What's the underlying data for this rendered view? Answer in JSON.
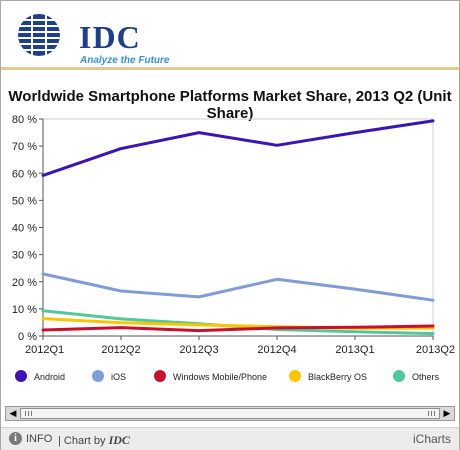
{
  "header": {
    "logo_text": "IDC",
    "tagline": "Analyze the Future"
  },
  "footer": {
    "info_label": "INFO",
    "chart_by_prefix": "| Chart by",
    "chart_by_brand": "IDC",
    "brand_right": "iCharts"
  },
  "chart_data": {
    "type": "line",
    "title": "Worldwide Smartphone Platforms Market Share, 2013 Q2 (Unit Share)",
    "xlabel": "",
    "ylabel": "",
    "x": [
      "2012Q1",
      "2012Q2",
      "2012Q3",
      "2012Q4",
      "2013Q1",
      "2013Q2"
    ],
    "ylim": [
      0,
      80
    ],
    "yticks": [
      0,
      10,
      20,
      30,
      40,
      50,
      60,
      70,
      80
    ],
    "ytick_labels": [
      "0 %",
      "10 %",
      "20 %",
      "30 %",
      "40 %",
      "50 %",
      "60 %",
      "70 %",
      "80 %"
    ],
    "grid": false,
    "legend_position": "bottom",
    "series": [
      {
        "name": "Android",
        "color": "#3a14b4",
        "values": [
          59.2,
          69.1,
          75.0,
          70.3,
          75.0,
          79.3
        ]
      },
      {
        "name": "iOS",
        "color": "#7f9bd8",
        "values": [
          22.9,
          16.6,
          14.4,
          20.9,
          17.3,
          13.2
        ]
      },
      {
        "name": "Windows Mobile/Phone",
        "color": "#c8102e",
        "values": [
          2.2,
          3.1,
          2.0,
          3.0,
          3.2,
          3.7
        ]
      },
      {
        "name": "BlackBerry OS",
        "color": "#f7c600",
        "values": [
          6.4,
          4.9,
          4.1,
          3.4,
          2.9,
          2.9
        ]
      },
      {
        "name": "Others",
        "color": "#52c89a",
        "values": [
          9.3,
          6.3,
          4.5,
          2.4,
          1.6,
          0.9
        ]
      }
    ]
  }
}
